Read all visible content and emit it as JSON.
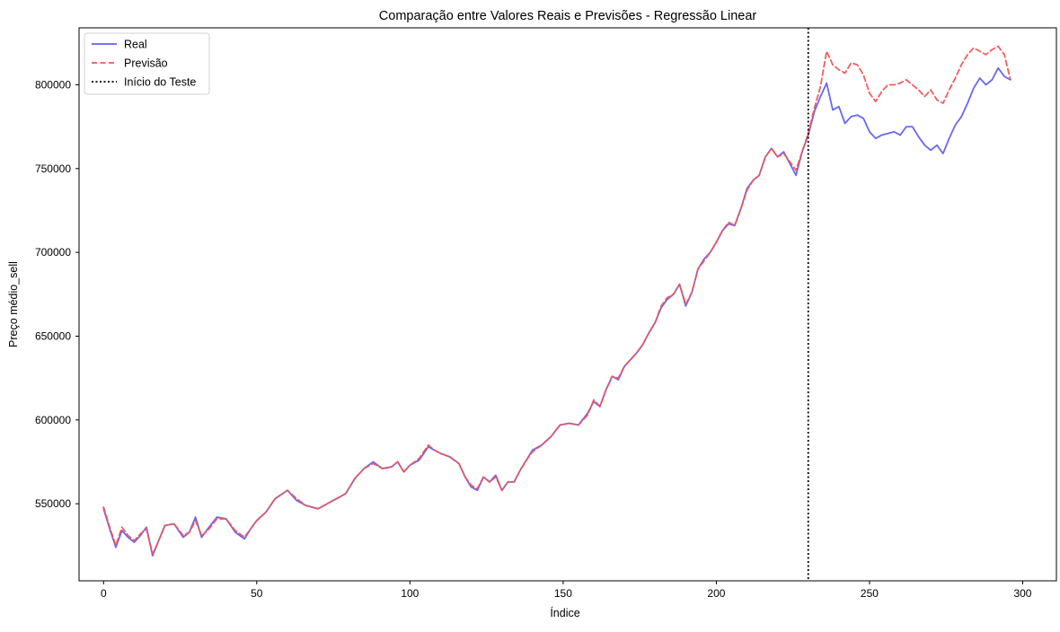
{
  "chart_data": {
    "type": "line",
    "title": "Comparação entre Valores Reais e Previsões - Regressão Linear",
    "xlabel": "Índice",
    "ylabel": "Preço médio_sell",
    "xlim": [
      -8,
      311
    ],
    "ylim": [
      504000,
      834000
    ],
    "x_ticks": [
      0,
      50,
      100,
      150,
      200,
      250,
      300
    ],
    "y_ticks": [
      550000,
      600000,
      650000,
      700000,
      750000,
      800000
    ],
    "grid": false,
    "legend_position": "top-left",
    "vline": {
      "x": 230,
      "label": "Início do Teste",
      "color": "#000000",
      "style": "dotted"
    },
    "series": [
      {
        "name": "Real",
        "color": "#6060f0",
        "style": "solid",
        "x": [
          0,
          2,
          4,
          6,
          8,
          10,
          12,
          14,
          16,
          18,
          20,
          23,
          26,
          28,
          30,
          32,
          34,
          37,
          40,
          43,
          46,
          48,
          50,
          53,
          56,
          60,
          63,
          66,
          68,
          70,
          73,
          76,
          79,
          82,
          85,
          88,
          91,
          94,
          96,
          98,
          100,
          103,
          106,
          108,
          110,
          113,
          116,
          118,
          120,
          122,
          124,
          126,
          128,
          130,
          132,
          134,
          136,
          138,
          140,
          143,
          146,
          149,
          152,
          155,
          158,
          160,
          162,
          164,
          166,
          168,
          170,
          172,
          174,
          176,
          178,
          180,
          182,
          184,
          186,
          188,
          190,
          192,
          194,
          196,
          198,
          200,
          202,
          204,
          206,
          208,
          210,
          212,
          214,
          216,
          218,
          220,
          222,
          224,
          226,
          228,
          230,
          232,
          234,
          236,
          238,
          240,
          242,
          244,
          246,
          248,
          250,
          252,
          254,
          256,
          258,
          260,
          262,
          264,
          266,
          268,
          270,
          272,
          274,
          276,
          278,
          280,
          282,
          284,
          286,
          288,
          290,
          292,
          294,
          296
        ],
        "y": [
          547000,
          535000,
          524000,
          534000,
          530000,
          527000,
          531000,
          536000,
          519000,
          528000,
          537000,
          538000,
          530000,
          533000,
          542000,
          530000,
          535000,
          542000,
          541000,
          533000,
          529000,
          535000,
          540000,
          545000,
          553000,
          558000,
          552000,
          549000,
          548000,
          547000,
          550000,
          553000,
          556000,
          565000,
          571000,
          575000,
          571000,
          572000,
          575000,
          569000,
          573000,
          576000,
          584000,
          582000,
          580000,
          578000,
          574000,
          566000,
          560000,
          558000,
          566000,
          563000,
          567000,
          558000,
          563000,
          563000,
          570000,
          576000,
          582000,
          585000,
          590000,
          597000,
          598000,
          597000,
          604000,
          611000,
          608000,
          618000,
          626000,
          624000,
          632000,
          636000,
          640000,
          645000,
          652000,
          658000,
          667000,
          672000,
          675000,
          681000,
          668000,
          676000,
          690000,
          696000,
          700000,
          706000,
          713000,
          717000,
          716000,
          726000,
          738000,
          743000,
          746000,
          757000,
          762000,
          757000,
          760000,
          753000,
          746000,
          760000,
          770000,
          784000,
          793000,
          801000,
          785000,
          787000,
          777000,
          781000,
          782000,
          780000,
          772000,
          768000,
          770000,
          771000,
          772000,
          770000,
          775000,
          775000,
          769000,
          764000,
          761000,
          764000,
          759000,
          768000,
          776000,
          781000,
          789000,
          798000,
          804000,
          800000,
          803000,
          810000,
          805000,
          803000
        ]
      },
      {
        "name": "Previsão",
        "color": "#f25555",
        "style": "dashed",
        "x": [
          0,
          2,
          4,
          6,
          8,
          10,
          12,
          14,
          16,
          18,
          20,
          23,
          26,
          28,
          30,
          32,
          34,
          37,
          40,
          43,
          46,
          48,
          50,
          53,
          56,
          60,
          63,
          66,
          68,
          70,
          73,
          76,
          79,
          82,
          85,
          88,
          91,
          94,
          96,
          98,
          100,
          103,
          106,
          108,
          110,
          113,
          116,
          118,
          120,
          122,
          124,
          126,
          128,
          130,
          132,
          134,
          136,
          138,
          140,
          143,
          146,
          149,
          152,
          155,
          158,
          160,
          162,
          164,
          166,
          168,
          170,
          172,
          174,
          176,
          178,
          180,
          182,
          184,
          186,
          188,
          190,
          192,
          194,
          196,
          198,
          200,
          202,
          204,
          206,
          208,
          210,
          212,
          214,
          216,
          218,
          220,
          222,
          224,
          226,
          228,
          230,
          232,
          234,
          236,
          238,
          240,
          242,
          244,
          246,
          248,
          250,
          252,
          254,
          256,
          258,
          260,
          262,
          264,
          266,
          268,
          270,
          272,
          274,
          276,
          278,
          280,
          282,
          284,
          286,
          288,
          290,
          292,
          294,
          296
        ],
        "y": [
          548000,
          536000,
          525000,
          536000,
          531000,
          528000,
          532000,
          535000,
          520000,
          528000,
          537000,
          538000,
          531000,
          533000,
          540000,
          531000,
          534000,
          541000,
          541000,
          534000,
          530000,
          535000,
          540000,
          545000,
          553000,
          558000,
          553000,
          549000,
          548000,
          547000,
          550000,
          553000,
          556000,
          565000,
          571000,
          574000,
          571000,
          572000,
          575000,
          569000,
          573000,
          577000,
          585000,
          582000,
          580000,
          578000,
          574000,
          566000,
          561000,
          559000,
          566000,
          563000,
          566000,
          558000,
          563000,
          563000,
          570000,
          576000,
          581000,
          585000,
          590000,
          597000,
          598000,
          597000,
          603000,
          612000,
          608000,
          618000,
          626000,
          625000,
          632000,
          636000,
          640000,
          645000,
          652000,
          658000,
          668000,
          673000,
          675000,
          681000,
          669000,
          676000,
          690000,
          695000,
          700000,
          706000,
          713000,
          718000,
          716000,
          726000,
          737000,
          743000,
          746000,
          757000,
          762000,
          757000,
          759000,
          754000,
          749000,
          760000,
          771000,
          786000,
          799000,
          820000,
          812000,
          809000,
          807000,
          813000,
          812000,
          806000,
          795000,
          790000,
          796000,
          800000,
          800000,
          801000,
          803000,
          800000,
          797000,
          793000,
          797000,
          791000,
          789000,
          797000,
          804000,
          812000,
          818000,
          822000,
          820000,
          818000,
          821000,
          823000,
          818000,
          803000
        ]
      }
    ]
  }
}
